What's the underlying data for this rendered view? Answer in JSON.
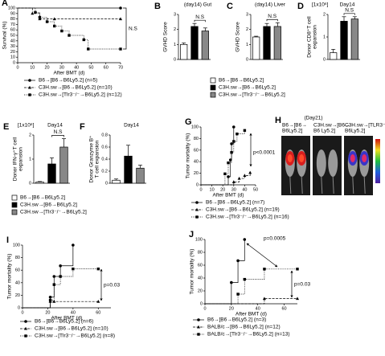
{
  "chart_data": [
    {
      "type": "line",
      "panel": "A",
      "ylabel": [
        "Survival (%)"
      ],
      "xlabel": "After BMT (d)",
      "xlim": [
        0,
        70
      ],
      "xticks": [
        0,
        10,
        20,
        30,
        40,
        50,
        60,
        70
      ],
      "ylim": [
        0,
        100
      ],
      "yticks": [
        0,
        10,
        20,
        30,
        40,
        50,
        60,
        70,
        80,
        90,
        100
      ],
      "annotations": [
        "N.S"
      ],
      "series": [
        {
          "name": "B6→[B6→B6Ly5.2] (n=5)",
          "color": "#000000",
          "marker": "circle",
          "dash": "solid",
          "x": [
            0,
            70
          ],
          "values": [
            100,
            100
          ]
        },
        {
          "name": "C3H.sw→[B6→B6Ly5.2] (n=10)",
          "color": "#000000",
          "marker": "triangle",
          "dash": "dashed",
          "x": [
            0,
            10,
            15,
            25,
            70
          ],
          "values": [
            100,
            90,
            80,
            80,
            80
          ]
        },
        {
          "name": "C3H.sw→[Tlr3⁻/⁻→B6Ly5.2] (n=12)",
          "color": "#000000",
          "marker": "square",
          "dash": "dotted",
          "x": [
            0,
            12,
            15,
            20,
            25,
            30,
            35,
            45,
            48,
            70
          ],
          "values": [
            100,
            92,
            83,
            75,
            67,
            58,
            50,
            42,
            25,
            25
          ]
        }
      ]
    },
    {
      "type": "bar",
      "panel": "B",
      "title": "(day14)  Gut",
      "ylabel": [
        "GVHD Score"
      ],
      "ylim": [
        0,
        3
      ],
      "yticks": [
        0,
        1,
        2,
        3
      ],
      "values": [
        1.0,
        2.2,
        1.9
      ],
      "errors": [
        0.1,
        0.2,
        0.2
      ],
      "annotations": [
        "N.S"
      ]
    },
    {
      "type": "bar",
      "panel": "C",
      "title": "(day14) Liver",
      "ylabel": [
        "GVHD Score"
      ],
      "ylim": [
        0,
        3
      ],
      "yticks": [
        0,
        1,
        2,
        3
      ],
      "values": [
        1.5,
        2.2,
        2.2
      ],
      "errors": [
        0.05,
        0.2,
        0.25
      ],
      "annotations": [
        "N.S"
      ]
    },
    {
      "type": "bar",
      "panel": "D",
      "title": "Day14",
      "unit": "[1x10⁶]",
      "ylabel": [
        "Donor CD8⁺T cell",
        "expansion"
      ],
      "ylim": [
        0,
        2
      ],
      "yticks": [
        0,
        1,
        2
      ],
      "values": [
        0.3,
        1.7,
        1.8
      ],
      "errors": [
        0.15,
        0.2,
        0.1
      ],
      "annotations": [
        "N.S"
      ]
    },
    {
      "type": "bar",
      "panel": "E",
      "title": "Day14",
      "unit": "[1x10⁶]",
      "ylabel": [
        "Donor IFN-γ⁺T cell",
        "expansion"
      ],
      "ylim": [
        0,
        2
      ],
      "yticks": [
        0,
        1,
        2
      ],
      "values": [
        0.05,
        0.8,
        1.5
      ],
      "errors": [
        0.02,
        0.25,
        0.35
      ],
      "annotations": [
        "N.S"
      ]
    },
    {
      "type": "bar",
      "panel": "F",
      "title": "Day14",
      "ylabel": [
        "Donor Granzyme B⁺",
        "T cell expansion"
      ],
      "ylim": [
        0,
        0.8
      ],
      "yticks": [
        0,
        0.2,
        0.4,
        0.6,
        0.8
      ],
      "values": [
        0.05,
        0.45,
        0.25
      ],
      "errors": [
        0.02,
        0.18,
        0.05
      ],
      "annotations": []
    },
    {
      "type": "line",
      "panel": "G",
      "ylabel": [
        "Tumor mortality (%)"
      ],
      "xlabel": "After BMT (d)",
      "xlim": [
        0,
        50
      ],
      "xticks": [
        0,
        10,
        20,
        30,
        40,
        50
      ],
      "ylim": [
        0,
        100
      ],
      "yticks": [
        0,
        20,
        40,
        60,
        80,
        100
      ],
      "annotations": [
        "p<0.0001"
      ],
      "series": [
        {
          "name": "B6→[B6→B6Ly5.2] (n=7)",
          "color": "#000000",
          "marker": "circle",
          "dash": "solid",
          "x": [
            0,
            25,
            27,
            28,
            30
          ],
          "values": [
            0,
            14,
            43,
            71,
            100
          ]
        },
        {
          "name": "C3H.sw→[B6→B6Ly5.2] (n=19)",
          "color": "#000000",
          "marker": "triangle",
          "dash": "dashed",
          "x": [
            0,
            30,
            35,
            40,
            45
          ],
          "values": [
            0,
            5,
            11,
            16,
            21
          ]
        },
        {
          "name": "C3H.sw→[Tlr3⁻/⁻→B6Ly5.2] (n=16)",
          "color": "#000000",
          "marker": "square",
          "dash": "dotted",
          "x": [
            0,
            22,
            25,
            28,
            30,
            33,
            40
          ],
          "values": [
            0,
            19,
            38,
            56,
            75,
            88,
            94
          ]
        }
      ]
    },
    {
      "type": "image",
      "panel": "H",
      "title": "(Day21)",
      "labels": [
        [
          "B6→[B6→",
          "B6Ly5.2]"
        ],
        [
          "C3H.sw→[B6→",
          "B6 Ly5.2]"
        ],
        [
          "C3H.sw→[TLR3⁻/⁻→",
          "B6Ly5.2]"
        ]
      ]
    },
    {
      "type": "line",
      "panel": "I",
      "ylabel": [
        "Tumor mortality (%)"
      ],
      "xlabel": "After BMT (d)",
      "xlim": [
        0,
        70
      ],
      "xticks": [
        0,
        20,
        40,
        60
      ],
      "ylim": [
        0,
        100
      ],
      "yticks": [
        0,
        20,
        40,
        60,
        80,
        100
      ],
      "annotations": [
        "p=0.03"
      ],
      "series": [
        {
          "name": "B6→[B6→B6Ly5.2] (n=6)",
          "color": "#000000",
          "marker": "circle",
          "dash": "solid",
          "x": [
            0,
            22,
            25,
            30,
            40
          ],
          "values": [
            0,
            17,
            50,
            67,
            100
          ]
        },
        {
          "name": "C3H.sw→[B6→B6Ly5.2] (n=10)",
          "color": "#000000",
          "marker": "triangle",
          "dash": "dashed",
          "x": [
            0,
            22,
            25,
            60
          ],
          "values": [
            0,
            10,
            10,
            10
          ]
        },
        {
          "name": "C3H.sw→[Tlr3⁻/⁻→B6Ly5.2] (n=8)",
          "color": "#000000",
          "marker": "square",
          "dash": "dotted",
          "x": [
            0,
            22,
            25,
            30,
            40,
            60
          ],
          "values": [
            0,
            12,
            37,
            50,
            62,
            62
          ]
        }
      ]
    },
    {
      "type": "line",
      "panel": "J",
      "ylabel": [
        "Tumor mortality (%)"
      ],
      "xlabel": "After BMT (d)",
      "xlim": [
        0,
        70
      ],
      "xticks": [
        0,
        20,
        40,
        60
      ],
      "ylim": [
        0,
        100
      ],
      "yticks": [
        0,
        20,
        40,
        60,
        80,
        100
      ],
      "annotations": [
        "p=0.0005",
        "p=0.03"
      ],
      "series": [
        {
          "name": "B6→[B6→B6Ly5.2] (n=3)",
          "color": "#000000",
          "marker": "circle",
          "dash": "solid",
          "x": [
            0,
            20,
            25,
            30
          ],
          "values": [
            0,
            33,
            67,
            100
          ]
        },
        {
          "name": "BALB/c→[B6→B6Ly5.2] (n=12)",
          "color": "#000000",
          "marker": "triangle",
          "dash": "dashed",
          "x": [
            0,
            45,
            70
          ],
          "values": [
            0,
            8,
            8
          ]
        },
        {
          "name": "BALB/c→[Tlr3⁻/⁻→B6Ly5.2] (n=13)",
          "color": "#000000",
          "marker": "square",
          "dash": "dotted",
          "x": [
            0,
            25,
            30,
            45,
            70
          ],
          "values": [
            0,
            15,
            38,
            54,
            54
          ]
        }
      ]
    }
  ],
  "bar_legend": {
    "names": [
      "B6→[B6→B6Ly5.2]",
      "C3H.sw→[B6→B6Ly5.2]",
      "C3H.sw→[Tlr3⁻/⁻→B6Ly5.2]"
    ],
    "colors": [
      "#ffffff",
      "#000000",
      "#888888"
    ]
  }
}
